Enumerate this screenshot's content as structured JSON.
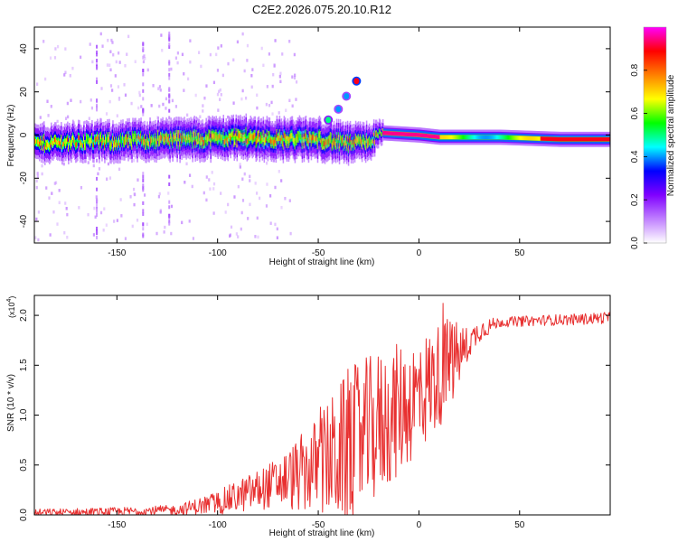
{
  "figure_title": "C2E2.2026.075.20.10.R12",
  "chart_data": [
    {
      "type": "heatmap",
      "title": "C2E2.2026.075.20.10.R12",
      "xlabel": "Height of straight line (km)",
      "ylabel": "Frequency (Hz)",
      "xlim": [
        -191,
        95
      ],
      "ylim": [
        -50,
        50
      ],
      "xticks": [
        -150,
        -100,
        -50,
        0,
        50
      ],
      "xtick_labels": [
        "-150",
        "-100",
        "-50",
        "0",
        "50"
      ],
      "yticks": [
        -40,
        -20,
        0,
        20,
        40
      ],
      "ytick_labels": [
        "-40",
        "-20",
        "0",
        "20",
        "40"
      ],
      "colorbar": {
        "label": "Normalized spectral amplitude",
        "range": [
          0,
          1
        ],
        "ticks": [
          0.0,
          0.2,
          0.4,
          0.6,
          0.8
        ],
        "tick_labels": [
          "0.0",
          "0.2",
          "0.4",
          "0.6",
          "0.8"
        ],
        "colormap": [
          "#ffffff",
          "#c080ff",
          "#8000ff",
          "#0000ff",
          "#00ffff",
          "#00ff00",
          "#ffff00",
          "#ff8000",
          "#ff0000",
          "#ff00ff"
        ]
      },
      "band_center_hz": [
        {
          "x": -190,
          "y": -4
        },
        {
          "x": -170,
          "y": -3
        },
        {
          "x": -150,
          "y": -3
        },
        {
          "x": -130,
          "y": -2
        },
        {
          "x": -110,
          "y": -2
        },
        {
          "x": -90,
          "y": -1
        },
        {
          "x": -70,
          "y": -2
        },
        {
          "x": -50,
          "y": -2
        },
        {
          "x": -35,
          "y": -4
        },
        {
          "x": -25,
          "y": -3
        },
        {
          "x": -18,
          "y": 1
        },
        {
          "x": 0,
          "y": 0
        },
        {
          "x": 10,
          "y": -1
        },
        {
          "x": 40,
          "y": -1
        },
        {
          "x": 70,
          "y": -2
        },
        {
          "x": 93,
          "y": -2
        }
      ],
      "band_halfwidth_hz": [
        {
          "x": -190,
          "y": 5
        },
        {
          "x": -100,
          "y": 6
        },
        {
          "x": -50,
          "y": 6
        },
        {
          "x": -25,
          "y": 5
        },
        {
          "x": -18,
          "y": 2
        },
        {
          "x": 93,
          "y": 2
        }
      ],
      "features": [
        {
          "x": -31,
          "y": 25,
          "amplitude": 0.9
        },
        {
          "x": -36,
          "y": 18,
          "amplitude": 0.4
        },
        {
          "x": -40,
          "y": 12,
          "amplitude": 0.4
        },
        {
          "x": -45,
          "y": 7,
          "amplitude": 0.5
        }
      ]
    },
    {
      "type": "line",
      "xlabel": "Height of straight line (km)",
      "ylabel": "SNR (10 * v/v)",
      "y_multiplier": "(x10",
      "y_multiplier_exp": "4",
      "y_multiplier_close": ")",
      "xlim": [
        -191,
        95
      ],
      "ylim": [
        0,
        2.2
      ],
      "xticks": [
        -150,
        -100,
        -50,
        0,
        50
      ],
      "xtick_labels": [
        "-150",
        "-100",
        "-50",
        "0",
        "50"
      ],
      "yticks": [
        0,
        0.5,
        1.0,
        1.5,
        2.0
      ],
      "ytick_labels": [
        "0.0",
        "0.5",
        "1.0",
        "1.5",
        "2.0"
      ],
      "series_color": "#e83030",
      "trend": [
        {
          "x": -191,
          "y": 0.02
        },
        {
          "x": -150,
          "y": 0.03
        },
        {
          "x": -120,
          "y": 0.05
        },
        {
          "x": -100,
          "y": 0.12
        },
        {
          "x": -80,
          "y": 0.25
        },
        {
          "x": -60,
          "y": 0.4
        },
        {
          "x": -40,
          "y": 0.6
        },
        {
          "x": -20,
          "y": 0.9
        },
        {
          "x": 0,
          "y": 1.2
        },
        {
          "x": 10,
          "y": 1.4
        },
        {
          "x": 20,
          "y": 1.6
        },
        {
          "x": 30,
          "y": 1.85
        },
        {
          "x": 40,
          "y": 1.93
        },
        {
          "x": 60,
          "y": 1.95
        },
        {
          "x": 80,
          "y": 1.96
        },
        {
          "x": 95,
          "y": 1.98
        }
      ],
      "spread": [
        {
          "x": -191,
          "y": 0.04
        },
        {
          "x": -120,
          "y": 0.05
        },
        {
          "x": -100,
          "y": 0.12
        },
        {
          "x": -70,
          "y": 0.25
        },
        {
          "x": -50,
          "y": 0.5
        },
        {
          "x": -35,
          "y": 0.8
        },
        {
          "x": -20,
          "y": 0.75
        },
        {
          "x": 0,
          "y": 0.6
        },
        {
          "x": 15,
          "y": 0.5
        },
        {
          "x": 25,
          "y": 0.15
        },
        {
          "x": 40,
          "y": 0.05
        },
        {
          "x": 95,
          "y": 0.06
        }
      ]
    }
  ]
}
